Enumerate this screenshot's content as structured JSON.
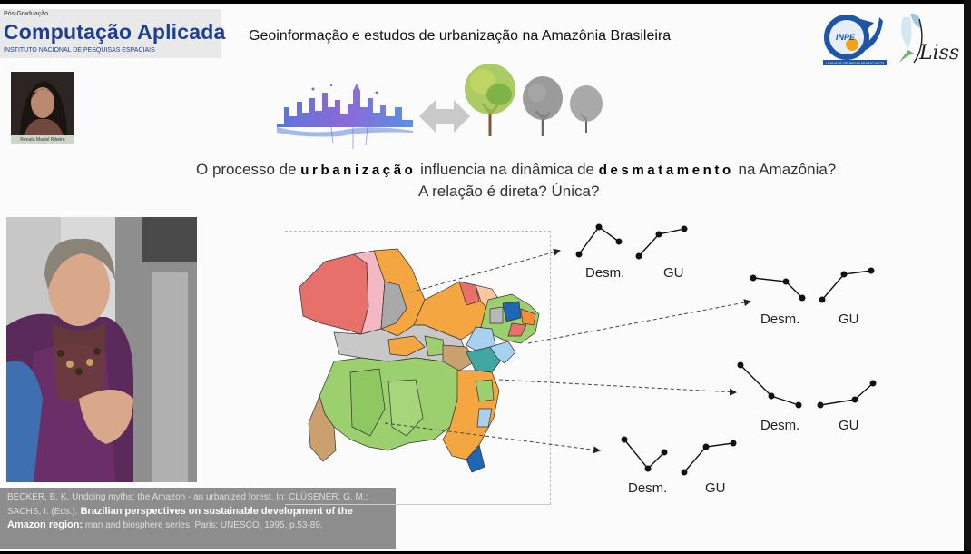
{
  "logo": {
    "pretitle": "Pós-Graduação",
    "title": "Computação Aplicada",
    "subtitle": "INSTITUTO NACIONAL DE PESQUISAS ESPACIAIS"
  },
  "slide_title": "Geoinformação e estudos de urbanização na Amazônia Brasileira",
  "presenter_caption": "Renata Maciel Ribeiro",
  "inpe_logo": {
    "text": "INPE",
    "subtext": "UNIDADE DE PESQUISA DO MCTI"
  },
  "liss_logo": {
    "text": "Liss"
  },
  "question": {
    "line1_before": "O processo de ",
    "line1_bold1": "urbanização",
    "line1_middle": " influencia na dinâmica de ",
    "line1_bold2": "desmatamento",
    "line1_after": " na Amazônia?",
    "line2": "A relação é direta? Única?"
  },
  "citation": {
    "part1": "BECKER, B. K. Undoing myths: the Amazon - an urbanized forest. In: CLÜSENER, G. M.; SACHS, I. (Eds.). ",
    "bold": "Brazilian perspectives on sustainable development of the Amazon region:",
    "part2": " man and biosphere series. Paris: UNESCO, 1995. p.53-89."
  },
  "trend_groups": [
    {
      "desm_label": "Desm.",
      "gu_label": "GU"
    },
    {
      "desm_label": "Desm.",
      "gu_label": "GU"
    },
    {
      "desm_label": "Desm.",
      "gu_label": "GU"
    },
    {
      "desm_label": "Desm.",
      "gu_label": "GU"
    }
  ],
  "colors": {
    "logo_blue": "#1d3f8f",
    "map_orange": "#f4a640",
    "map_green": "#9ccf6e",
    "map_red": "#e8706a",
    "map_blue": "#1f66b5",
    "map_tan": "#caa06e"
  }
}
